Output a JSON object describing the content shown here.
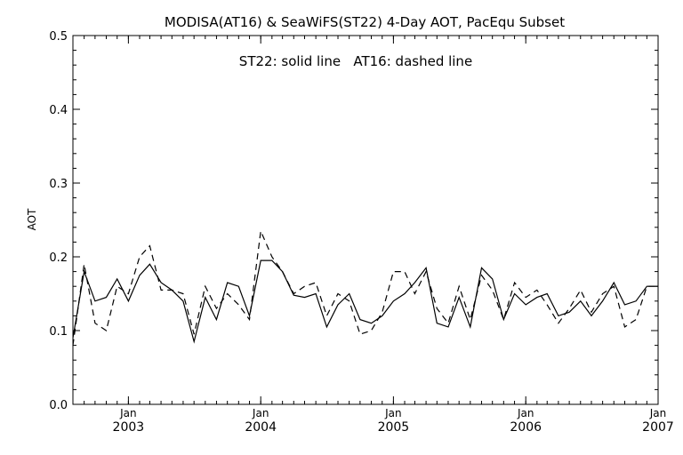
{
  "chart_data": {
    "type": "line",
    "title": "MODISA(AT16) & SeaWiFS(ST22) 4-Day AOT, PacEqu Subset",
    "annotation": "ST22: solid line   AT16: dashed line",
    "ylabel": "AOT",
    "xlabel": "",
    "ylim": [
      0.0,
      0.5
    ],
    "yticks": [
      "0.0",
      "0.1",
      "0.2",
      "0.3",
      "0.4",
      "0.5"
    ],
    "xlim": [
      "2002-08-01",
      "2007-01-01"
    ],
    "xticks": [
      {
        "date": "2003-01-01",
        "month": "Jan",
        "year": "2003"
      },
      {
        "date": "2004-01-01",
        "month": "Jan",
        "year": "2004"
      },
      {
        "date": "2005-01-01",
        "month": "Jan",
        "year": "2005"
      },
      {
        "date": "2006-01-01",
        "month": "Jan",
        "year": "2006"
      },
      {
        "date": "2007-01-01",
        "month": "Jan",
        "year": "2007"
      }
    ],
    "grid": false,
    "colors": {
      "line": "#000000",
      "background": "#ffffff"
    },
    "x": [
      "2002-08-01",
      "2002-09-01",
      "2002-10-01",
      "2002-11-01",
      "2002-12-01",
      "2003-01-01",
      "2003-02-01",
      "2003-03-01",
      "2003-04-01",
      "2003-05-01",
      "2003-06-01",
      "2003-07-01",
      "2003-08-01",
      "2003-09-01",
      "2003-10-01",
      "2003-11-01",
      "2003-12-01",
      "2004-01-01",
      "2004-02-01",
      "2004-03-01",
      "2004-04-01",
      "2004-05-01",
      "2004-06-01",
      "2004-07-01",
      "2004-08-01",
      "2004-09-01",
      "2004-10-01",
      "2004-11-01",
      "2004-12-01",
      "2005-01-01",
      "2005-02-01",
      "2005-03-01",
      "2005-04-01",
      "2005-05-01",
      "2005-06-01",
      "2005-07-01",
      "2005-08-01",
      "2005-09-01",
      "2005-10-01",
      "2005-11-01",
      "2005-12-01",
      "2006-01-01",
      "2006-02-01",
      "2006-03-01",
      "2006-04-01",
      "2006-05-01",
      "2006-06-01",
      "2006-07-01",
      "2006-08-01",
      "2006-09-01",
      "2006-10-01",
      "2006-11-01",
      "2006-12-01",
      "2007-01-01"
    ],
    "series": [
      {
        "name": "ST22",
        "style": "solid",
        "values": [
          0.09,
          0.18,
          0.14,
          0.145,
          0.17,
          0.14,
          0.175,
          0.19,
          0.165,
          0.155,
          0.14,
          0.085,
          0.145,
          0.115,
          0.165,
          0.16,
          0.12,
          0.195,
          0.195,
          0.18,
          0.148,
          0.145,
          0.15,
          0.105,
          0.135,
          0.15,
          0.115,
          0.11,
          0.12,
          0.14,
          0.15,
          0.165,
          0.185,
          0.11,
          0.105,
          0.145,
          0.105,
          0.185,
          0.17,
          0.115,
          0.15,
          0.135,
          0.145,
          0.15,
          0.12,
          0.125,
          0.14,
          0.12,
          0.14,
          0.165,
          0.135,
          0.14,
          0.16,
          0.16
        ]
      },
      {
        "name": "AT16",
        "style": "dashed",
        "values": [
          0.08,
          0.19,
          0.11,
          0.1,
          0.16,
          0.15,
          0.2,
          0.215,
          0.155,
          0.155,
          0.15,
          0.095,
          0.16,
          0.13,
          0.15,
          0.135,
          0.115,
          0.235,
          0.2,
          0.18,
          0.15,
          0.16,
          0.165,
          0.12,
          0.15,
          0.14,
          0.095,
          0.1,
          0.125,
          0.18,
          0.18,
          0.15,
          0.18,
          0.13,
          0.11,
          0.16,
          0.115,
          0.175,
          0.155,
          0.115,
          0.165,
          0.145,
          0.155,
          0.135,
          0.11,
          0.13,
          0.155,
          0.125,
          0.15,
          0.16,
          0.105,
          0.115,
          0.16,
          0.16
        ]
      }
    ]
  }
}
